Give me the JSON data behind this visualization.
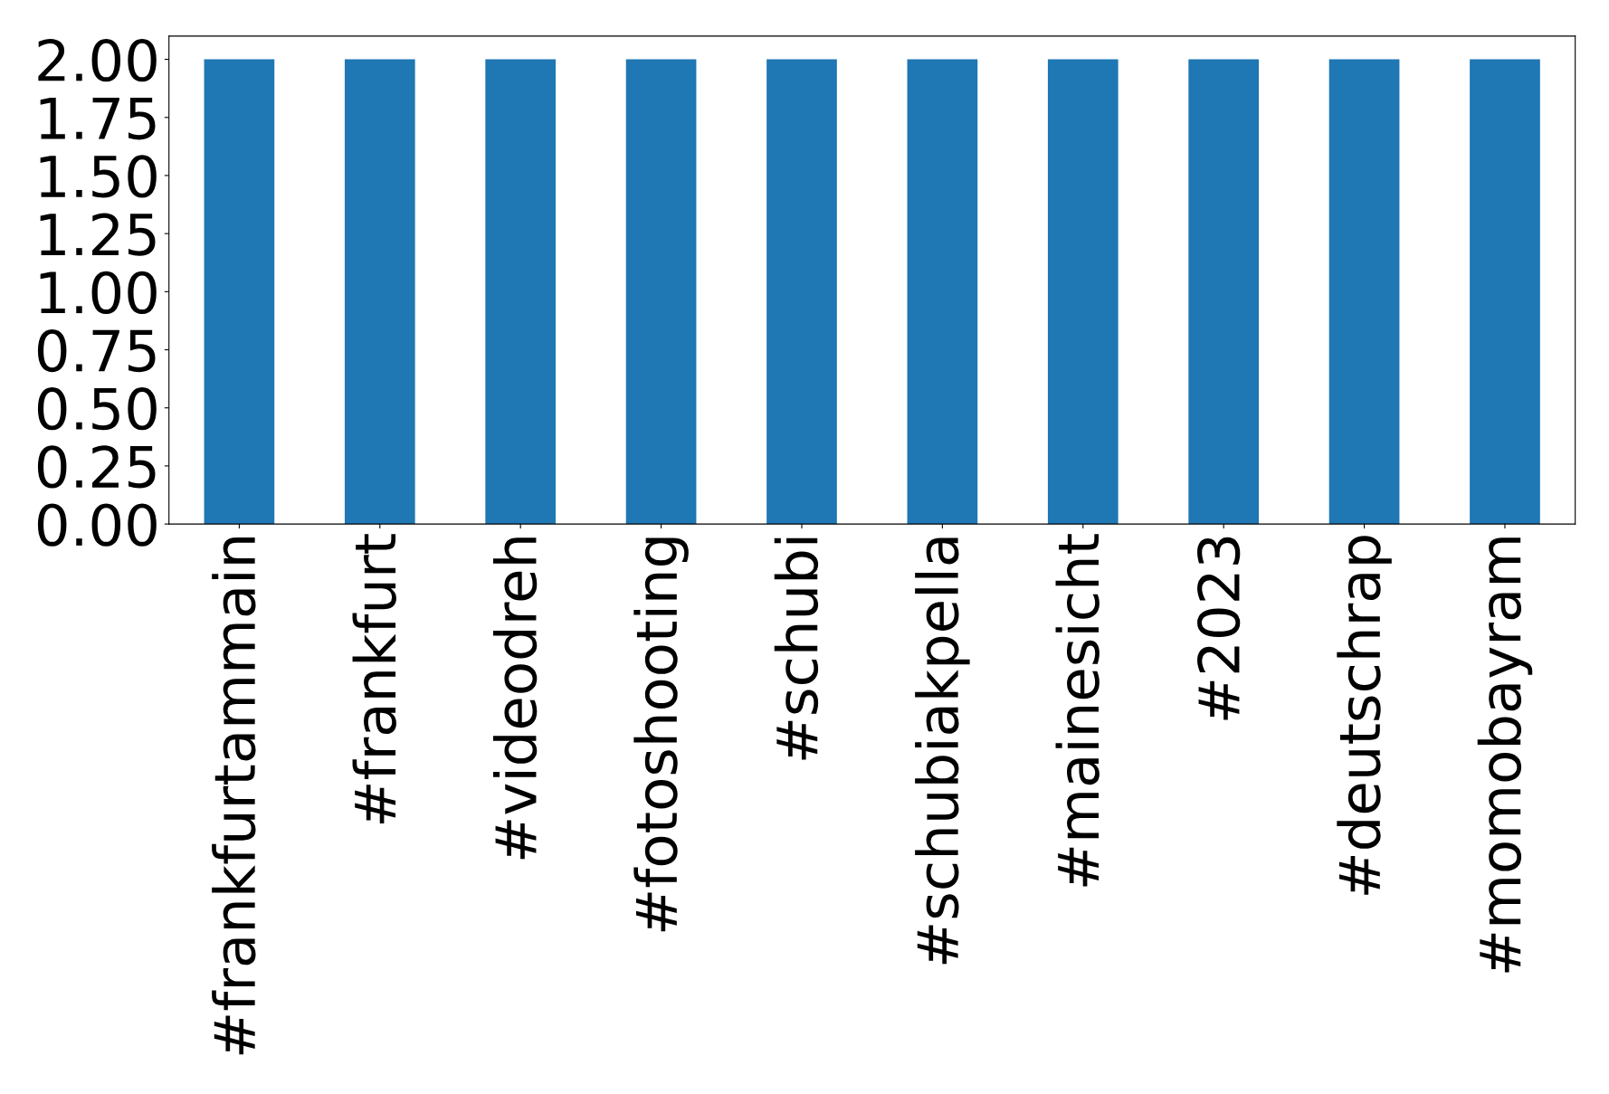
{
  "chart_data": {
    "type": "bar",
    "categories": [
      "#frankfurtammain",
      "#frankfurt",
      "#videodreh",
      "#fotoshooting",
      "#schubi",
      "#schubiakpella",
      "#mainesicht",
      "#2023",
      "#deutschrap",
      "#momobayram"
    ],
    "values": [
      2,
      2,
      2,
      2,
      2,
      2,
      2,
      2,
      2,
      2
    ],
    "color": "#1f77b4",
    "ylim": [
      0,
      2.1
    ],
    "yticks": [
      {
        "value": 0,
        "label": "0.00"
      },
      {
        "value": 0.25,
        "label": "0.25"
      },
      {
        "value": 0.5,
        "label": "0.50"
      },
      {
        "value": 0.75,
        "label": "0.75"
      },
      {
        "value": 1,
        "label": "1.00"
      },
      {
        "value": 1.25,
        "label": "1.25"
      },
      {
        "value": 1.5,
        "label": "1.50"
      },
      {
        "value": 1.75,
        "label": "1.75"
      },
      {
        "value": 2,
        "label": "2.00"
      }
    ],
    "grid": false
  }
}
